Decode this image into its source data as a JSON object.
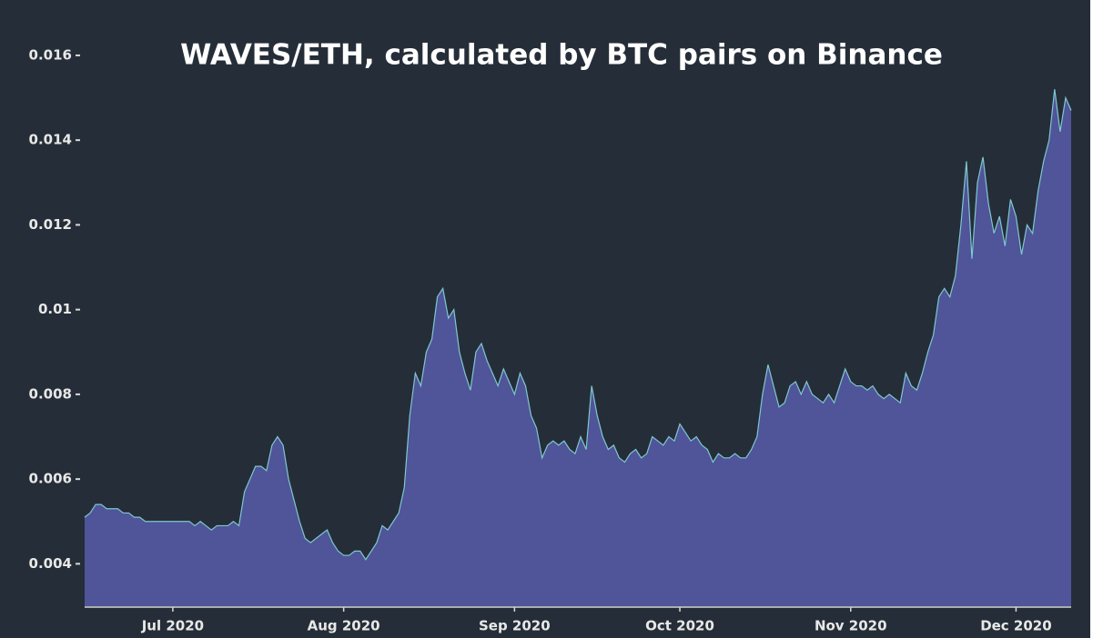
{
  "chart_data": {
    "type": "area",
    "title": "WAVES/ETH, calculated by BTC pairs on Binance",
    "x": [
      "2020-06-15",
      "2020-06-16",
      "2020-06-17",
      "2020-06-18",
      "2020-06-19",
      "2020-06-20",
      "2020-06-21",
      "2020-06-22",
      "2020-06-23",
      "2020-06-24",
      "2020-06-25",
      "2020-06-26",
      "2020-06-27",
      "2020-06-28",
      "2020-06-29",
      "2020-06-30",
      "2020-07-01",
      "2020-07-02",
      "2020-07-03",
      "2020-07-04",
      "2020-07-05",
      "2020-07-06",
      "2020-07-07",
      "2020-07-08",
      "2020-07-09",
      "2020-07-10",
      "2020-07-11",
      "2020-07-12",
      "2020-07-13",
      "2020-07-14",
      "2020-07-15",
      "2020-07-16",
      "2020-07-17",
      "2020-07-18",
      "2020-07-19",
      "2020-07-20",
      "2020-07-21",
      "2020-07-22",
      "2020-07-23",
      "2020-07-24",
      "2020-07-25",
      "2020-07-26",
      "2020-07-27",
      "2020-07-28",
      "2020-07-29",
      "2020-07-30",
      "2020-07-31",
      "2020-08-01",
      "2020-08-02",
      "2020-08-03",
      "2020-08-04",
      "2020-08-05",
      "2020-08-06",
      "2020-08-07",
      "2020-08-08",
      "2020-08-09",
      "2020-08-10",
      "2020-08-11",
      "2020-08-12",
      "2020-08-13",
      "2020-08-14",
      "2020-08-15",
      "2020-08-16",
      "2020-08-17",
      "2020-08-18",
      "2020-08-19",
      "2020-08-20",
      "2020-08-21",
      "2020-08-22",
      "2020-08-23",
      "2020-08-24",
      "2020-08-25",
      "2020-08-26",
      "2020-08-27",
      "2020-08-28",
      "2020-08-29",
      "2020-08-30",
      "2020-08-31",
      "2020-09-01",
      "2020-09-02",
      "2020-09-03",
      "2020-09-04",
      "2020-09-05",
      "2020-09-06",
      "2020-09-07",
      "2020-09-08",
      "2020-09-09",
      "2020-09-10",
      "2020-09-11",
      "2020-09-12",
      "2020-09-13",
      "2020-09-14",
      "2020-09-15",
      "2020-09-16",
      "2020-09-17",
      "2020-09-18",
      "2020-09-19",
      "2020-09-20",
      "2020-09-21",
      "2020-09-22",
      "2020-09-23",
      "2020-09-24",
      "2020-09-25",
      "2020-09-26",
      "2020-09-27",
      "2020-09-28",
      "2020-09-29",
      "2020-09-30",
      "2020-10-01",
      "2020-10-02",
      "2020-10-03",
      "2020-10-04",
      "2020-10-05",
      "2020-10-06",
      "2020-10-07",
      "2020-10-08",
      "2020-10-09",
      "2020-10-10",
      "2020-10-11",
      "2020-10-12",
      "2020-10-13",
      "2020-10-14",
      "2020-10-15",
      "2020-10-16",
      "2020-10-17",
      "2020-10-18",
      "2020-10-19",
      "2020-10-20",
      "2020-10-21",
      "2020-10-22",
      "2020-10-23",
      "2020-10-24",
      "2020-10-25",
      "2020-10-26",
      "2020-10-27",
      "2020-10-28",
      "2020-10-29",
      "2020-10-30",
      "2020-10-31",
      "2020-11-01",
      "2020-11-02",
      "2020-11-03",
      "2020-11-04",
      "2020-11-05",
      "2020-11-06",
      "2020-11-07",
      "2020-11-08",
      "2020-11-09",
      "2020-11-10",
      "2020-11-11",
      "2020-11-12",
      "2020-11-13",
      "2020-11-14",
      "2020-11-15",
      "2020-11-16",
      "2020-11-17",
      "2020-11-18",
      "2020-11-19",
      "2020-11-20",
      "2020-11-21",
      "2020-11-22",
      "2020-11-23",
      "2020-11-24",
      "2020-11-25",
      "2020-11-26",
      "2020-11-27",
      "2020-11-28",
      "2020-11-29",
      "2020-11-30",
      "2020-12-01",
      "2020-12-02",
      "2020-12-03",
      "2020-12-04",
      "2020-12-05",
      "2020-12-06",
      "2020-12-07",
      "2020-12-08",
      "2020-12-09",
      "2020-12-10",
      "2020-12-11"
    ],
    "values": [
      0.0051,
      0.0052,
      0.0054,
      0.0054,
      0.0053,
      0.0053,
      0.0053,
      0.0052,
      0.0052,
      0.0051,
      0.0051,
      0.005,
      0.005,
      0.005,
      0.005,
      0.005,
      0.005,
      0.005,
      0.005,
      0.005,
      0.0049,
      0.005,
      0.0049,
      0.0048,
      0.0049,
      0.0049,
      0.0049,
      0.005,
      0.0049,
      0.0057,
      0.006,
      0.0063,
      0.0063,
      0.0062,
      0.0068,
      0.007,
      0.0068,
      0.006,
      0.0055,
      0.005,
      0.0046,
      0.0045,
      0.0046,
      0.0047,
      0.0048,
      0.0045,
      0.0043,
      0.0042,
      0.0042,
      0.0043,
      0.0043,
      0.0041,
      0.0043,
      0.0045,
      0.0049,
      0.0048,
      0.005,
      0.0052,
      0.0058,
      0.0075,
      0.0085,
      0.0082,
      0.009,
      0.0093,
      0.0103,
      0.0105,
      0.0098,
      0.01,
      0.009,
      0.0085,
      0.0081,
      0.009,
      0.0092,
      0.0088,
      0.0085,
      0.0082,
      0.0086,
      0.0083,
      0.008,
      0.0085,
      0.0082,
      0.0075,
      0.0072,
      0.0065,
      0.0068,
      0.0069,
      0.0068,
      0.0069,
      0.0067,
      0.0066,
      0.007,
      0.0067,
      0.0082,
      0.0075,
      0.007,
      0.0067,
      0.0068,
      0.0065,
      0.0064,
      0.0066,
      0.0067,
      0.0065,
      0.0066,
      0.007,
      0.0069,
      0.0068,
      0.007,
      0.0069,
      0.0073,
      0.0071,
      0.0069,
      0.007,
      0.0068,
      0.0067,
      0.0064,
      0.0066,
      0.0065,
      0.0065,
      0.0066,
      0.0065,
      0.0065,
      0.0067,
      0.007,
      0.008,
      0.0087,
      0.0082,
      0.0077,
      0.0078,
      0.0082,
      0.0083,
      0.008,
      0.0083,
      0.008,
      0.0079,
      0.0078,
      0.008,
      0.0078,
      0.0082,
      0.0086,
      0.0083,
      0.0082,
      0.0082,
      0.0081,
      0.0082,
      0.008,
      0.0079,
      0.008,
      0.0079,
      0.0078,
      0.0085,
      0.0082,
      0.0081,
      0.0085,
      0.009,
      0.0094,
      0.0103,
      0.0105,
      0.0103,
      0.0108,
      0.012,
      0.0135,
      0.0112,
      0.013,
      0.0136,
      0.0125,
      0.0118,
      0.0122,
      0.0115,
      0.0126,
      0.0122,
      0.0113,
      0.012,
      0.0118,
      0.0128,
      0.0135,
      0.014,
      0.0152,
      0.0142,
      0.015,
      0.0147
    ],
    "color": "#505498",
    "line_color": "#7ec8d0",
    "xlim": [
      "2020-06-15",
      "2020-12-11"
    ],
    "xticks": [
      {
        "value": "2020-07-01",
        "label": "Jul 2020"
      },
      {
        "value": "2020-08-01",
        "label": "Aug 2020"
      },
      {
        "value": "2020-09-01",
        "label": "Sep 2020"
      },
      {
        "value": "2020-10-01",
        "label": "Oct 2020"
      },
      {
        "value": "2020-11-01",
        "label": "Nov 2020"
      },
      {
        "value": "2020-12-01",
        "label": "Dec 2020"
      }
    ],
    "ylim": [
      0.003,
      0.0172
    ],
    "yticks": [
      0.004,
      0.006,
      0.008,
      0.01,
      0.012,
      0.014,
      0.016
    ],
    "grid": false
  }
}
